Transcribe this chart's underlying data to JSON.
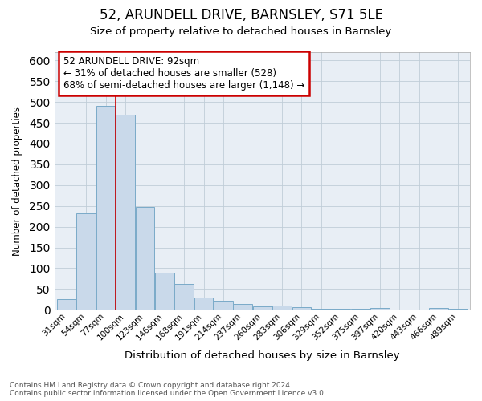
{
  "title": "52, ARUNDELL DRIVE, BARNSLEY, S71 5LE",
  "subtitle": "Size of property relative to detached houses in Barnsley",
  "xlabel": "Distribution of detached houses by size in Barnsley",
  "ylabel": "Number of detached properties",
  "bin_labels": [
    "31sqm",
    "54sqm",
    "77sqm",
    "100sqm",
    "123sqm",
    "146sqm",
    "168sqm",
    "191sqm",
    "214sqm",
    "237sqm",
    "260sqm",
    "283sqm",
    "306sqm",
    "329sqm",
    "352sqm",
    "375sqm",
    "397sqm",
    "420sqm",
    "443sqm",
    "466sqm",
    "489sqm"
  ],
  "bar_heights": [
    25,
    232,
    490,
    470,
    248,
    90,
    63,
    30,
    22,
    14,
    9,
    10,
    7,
    2,
    2,
    2,
    5,
    0,
    0,
    5,
    3
  ],
  "bar_color": "#c9d9ea",
  "bar_edge_color": "#7aaac8",
  "vline_bin": 2.5,
  "annotation_line1": "52 ARUNDELL DRIVE: 92sqm",
  "annotation_line2": "← 31% of detached houses are smaller (528)",
  "annotation_line3": "68% of semi-detached houses are larger (1,148) →",
  "annotation_box_color": "#cc0000",
  "ylim_max": 620,
  "yticks": [
    0,
    50,
    100,
    150,
    200,
    250,
    300,
    350,
    400,
    450,
    500,
    550,
    600
  ],
  "footer_line1": "Contains HM Land Registry data © Crown copyright and database right 2024.",
  "footer_line2": "Contains public sector information licensed under the Open Government Licence v3.0.",
  "bg_color": "#ffffff",
  "plot_bg_color": "#e8eef5",
  "grid_color": "#c0cdd8",
  "title_fontsize": 12,
  "subtitle_fontsize": 9.5
}
